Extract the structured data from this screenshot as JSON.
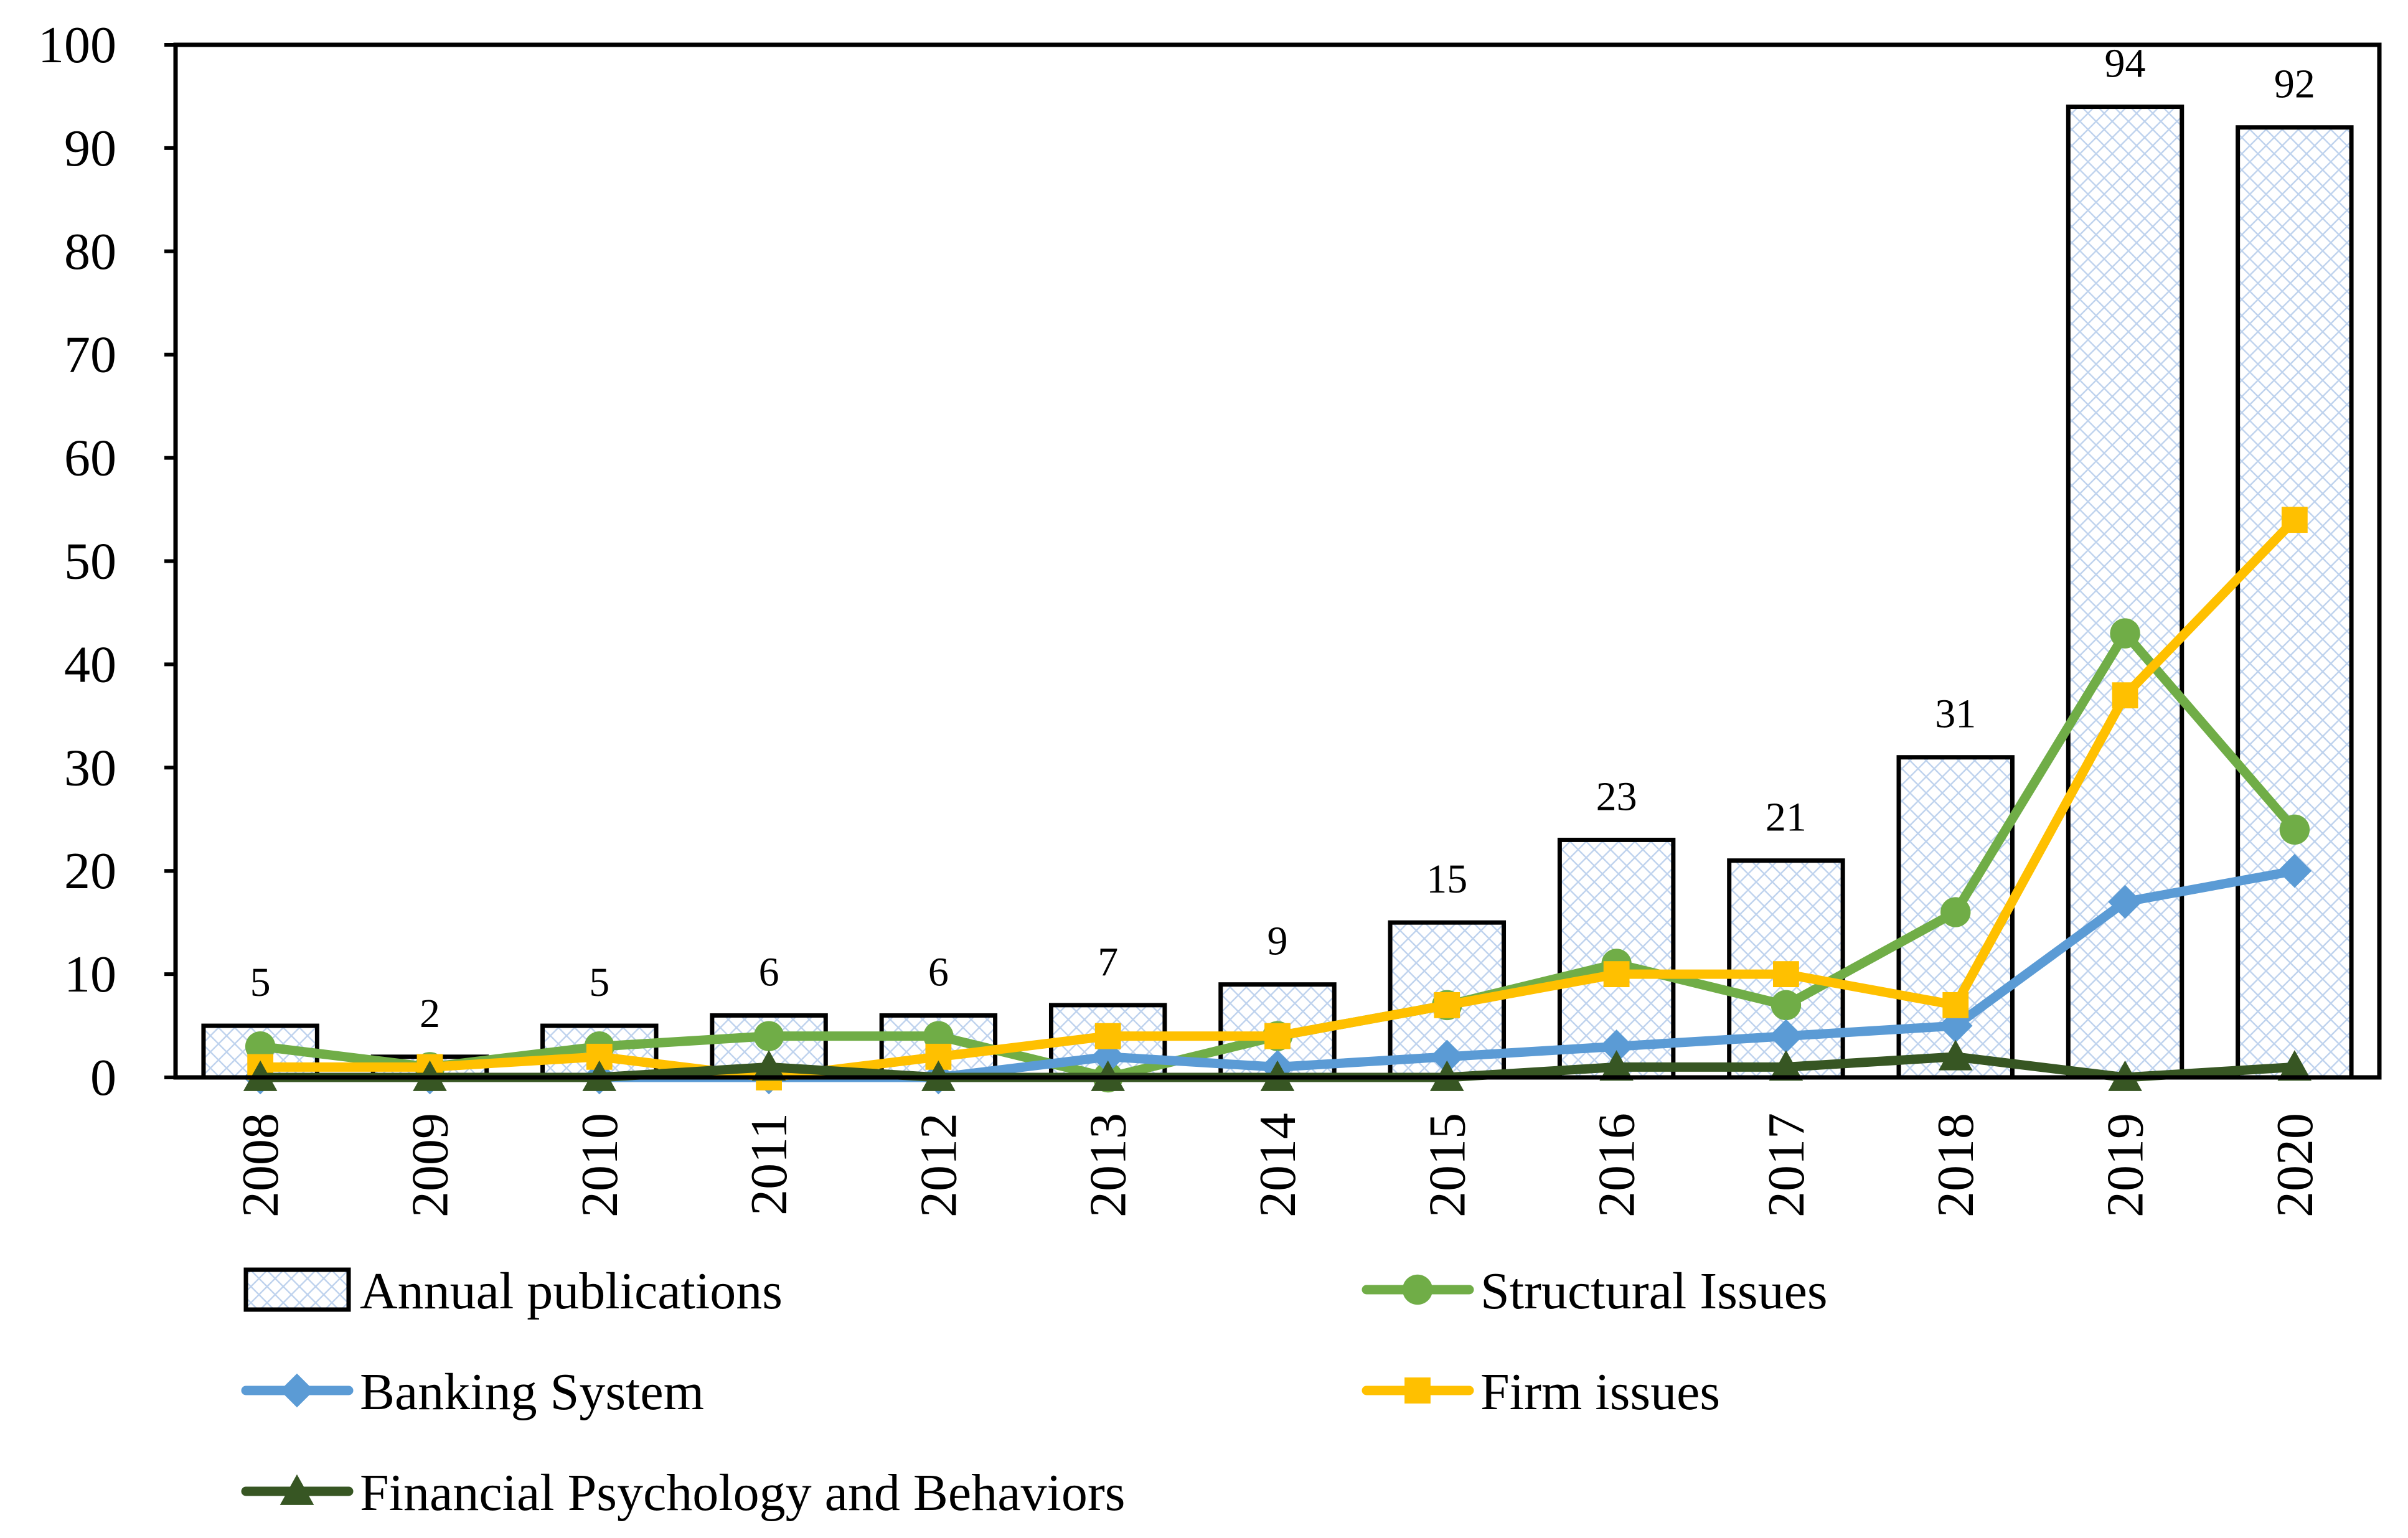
{
  "chart_data": {
    "type": "bar+line",
    "title": "",
    "xlabel": "",
    "ylabel": "",
    "ylim": [
      0,
      100
    ],
    "yticks": [
      0,
      10,
      20,
      30,
      40,
      50,
      60,
      70,
      80,
      90,
      100
    ],
    "categories": [
      "2008",
      "2009",
      "2010",
      "2011",
      "2012",
      "2013",
      "2014",
      "2015",
      "2016",
      "2017",
      "2018",
      "2019",
      "2020"
    ],
    "bars": {
      "name": "Annual publications",
      "values": [
        5,
        2,
        5,
        6,
        6,
        7,
        9,
        15,
        23,
        21,
        31,
        94,
        92
      ],
      "labels": [
        "5",
        "2",
        "5",
        "6",
        "6",
        "7",
        "9",
        "15",
        "23",
        "21",
        "31",
        "94",
        "92"
      ]
    },
    "series": [
      {
        "name": "Structural Issues",
        "color": "#70AD47",
        "marker": "circle",
        "values": [
          3,
          1,
          3,
          4,
          4,
          0,
          4,
          7,
          11,
          7,
          16,
          43,
          24
        ]
      },
      {
        "name": "Banking System",
        "color": "#5B9BD5",
        "marker": "diamond",
        "values": [
          0,
          0,
          0,
          0,
          0,
          2,
          1,
          2,
          3,
          4,
          5,
          17,
          20
        ]
      },
      {
        "name": "Firm issues",
        "color": "#FFC000",
        "marker": "square",
        "values": [
          1,
          1,
          2,
          0,
          2,
          4,
          4,
          7,
          10,
          10,
          7,
          37,
          54
        ]
      },
      {
        "name": "Financial Psychology and Behaviors",
        "color": "#375623",
        "marker": "triangle",
        "values": [
          0,
          0,
          0,
          1,
          0,
          0,
          0,
          0,
          1,
          1,
          2,
          0,
          1
        ]
      }
    ],
    "legend": {
      "position": "bottom",
      "entries": [
        "Annual publications",
        "Structural Issues",
        "Banking System",
        "Firm issues",
        "Financial Psychology and Behaviors"
      ]
    },
    "grid": false
  }
}
